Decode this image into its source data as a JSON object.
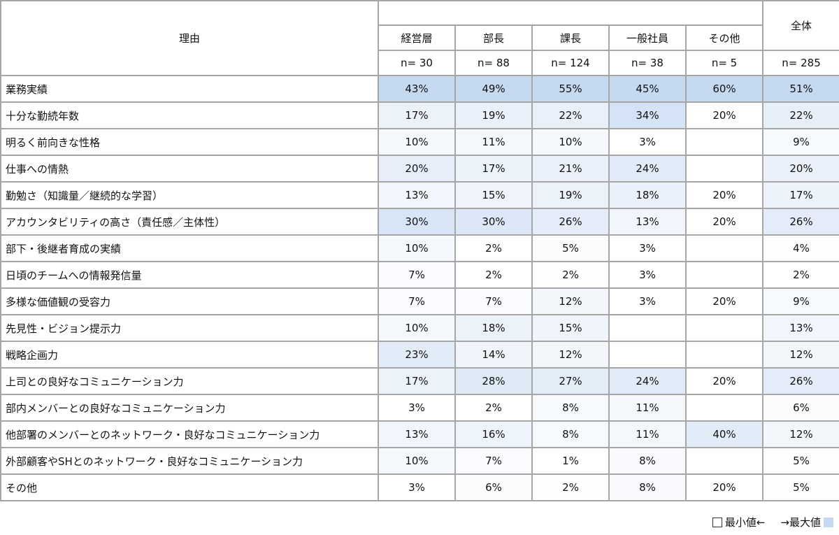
{
  "header": {
    "reason": "理由",
    "total": "全体",
    "groups": [
      "経営層",
      "部長",
      "課長",
      "一般社員",
      "その他"
    ],
    "n": [
      "n= 30",
      "n= 88",
      "n= 124",
      "n= 38",
      "n= 5"
    ],
    "total_n": "n= 285"
  },
  "colors": {
    "max": "#c5d9f1",
    "min": "#ffffff"
  },
  "legend": {
    "min": "最小値←",
    "max": "→最大値"
  },
  "chart_data": {
    "type": "table",
    "scale": "heatmap per column (min white → max blue)",
    "columns": [
      "経営層",
      "部長",
      "課長",
      "一般社員",
      "その他",
      "全体"
    ],
    "rows": [
      {
        "label": "業務実績",
        "values": [
          43,
          49,
          55,
          45,
          60,
          51
        ]
      },
      {
        "label": "十分な勤続年数",
        "values": [
          17,
          19,
          22,
          34,
          20,
          22
        ]
      },
      {
        "label": "明るく前向きな性格",
        "values": [
          10,
          11,
          10,
          3,
          null,
          9
        ]
      },
      {
        "label": "仕事への情熱",
        "values": [
          20,
          17,
          21,
          24,
          null,
          20
        ]
      },
      {
        "label": "勤勉さ（知識量／継続的な学習）",
        "values": [
          13,
          15,
          19,
          18,
          20,
          17
        ]
      },
      {
        "label": "アカウンタビリティの高さ（責任感／主体性）",
        "values": [
          30,
          30,
          26,
          13,
          20,
          26
        ]
      },
      {
        "label": "部下・後継者育成の実績",
        "values": [
          10,
          2,
          5,
          3,
          null,
          4
        ]
      },
      {
        "label": "日頃のチームへの情報発信量",
        "values": [
          7,
          2,
          2,
          3,
          null,
          2
        ]
      },
      {
        "label": "多様な価値観の受容力",
        "values": [
          7,
          7,
          12,
          3,
          20,
          9
        ]
      },
      {
        "label": "先見性・ビジョン提示力",
        "values": [
          10,
          18,
          15,
          null,
          null,
          13
        ]
      },
      {
        "label": "戦略企画力",
        "values": [
          23,
          14,
          12,
          null,
          null,
          12
        ]
      },
      {
        "label": "上司との良好なコミュニケーション力",
        "values": [
          17,
          28,
          27,
          24,
          20,
          26
        ]
      },
      {
        "label": "部内メンバーとの良好なコミュニケーション力",
        "values": [
          3,
          2,
          8,
          11,
          null,
          6
        ]
      },
      {
        "label": "他部署のメンバーとのネットワーク・良好なコミュニケーション力",
        "values": [
          13,
          16,
          8,
          11,
          40,
          12
        ]
      },
      {
        "label": "外部顧客やSHとのネットワーク・良好なコミュニケーション力",
        "values": [
          10,
          7,
          1,
          8,
          null,
          5
        ]
      },
      {
        "label": "その他",
        "values": [
          3,
          6,
          2,
          8,
          20,
          5
        ]
      }
    ]
  }
}
